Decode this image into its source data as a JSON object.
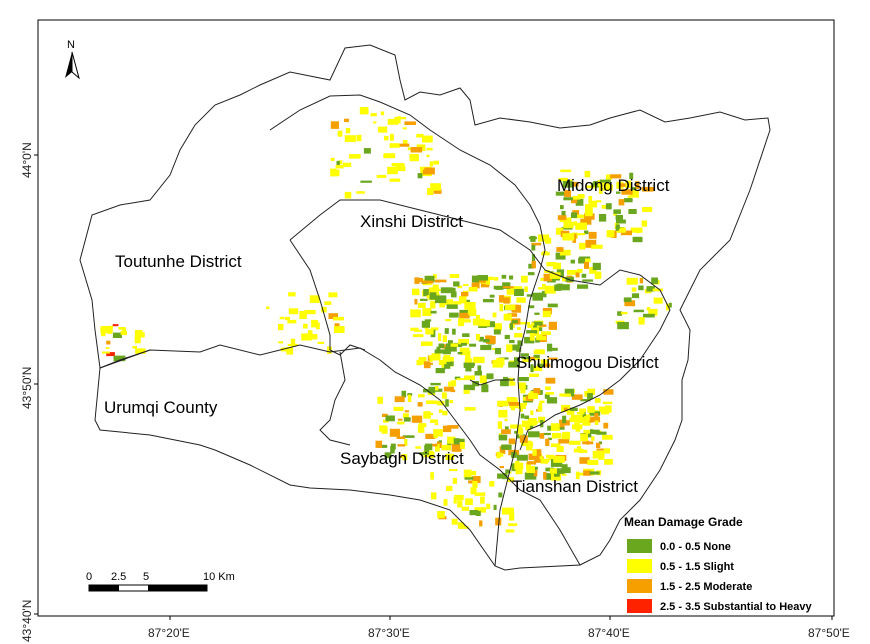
{
  "map": {
    "north_label": "N",
    "districts": [
      {
        "name": "Midong District"
      },
      {
        "name": "Xinshi District"
      },
      {
        "name": "Toutunhe District"
      },
      {
        "name": "Shuimogou District"
      },
      {
        "name": "Urumqi County"
      },
      {
        "name": "Saybagh District"
      },
      {
        "name": "Tianshan District"
      }
    ],
    "lat_ticks": [
      "44°0'N",
      "43°50'N",
      "43°40'N"
    ],
    "lon_ticks": [
      "87°20'E",
      "87°30'E",
      "87°40'E",
      "87°50'E"
    ],
    "scale_bar": {
      "labels": [
        "0",
        "2.5",
        "5",
        "10 Km"
      ]
    },
    "legend": {
      "title": "Mean Damage Grade",
      "items": [
        {
          "label": "0.0 - 0.5 None",
          "color": "#6aa61e"
        },
        {
          "label": "0.5 - 1.5 Slight",
          "color": "#ffff00"
        },
        {
          "label": "1.5 - 2.5 Moderate",
          "color": "#f5a000"
        },
        {
          "label": "2.5 - 3.5 Substantial to Heavy",
          "color": "#ff2200"
        }
      ]
    }
  }
}
